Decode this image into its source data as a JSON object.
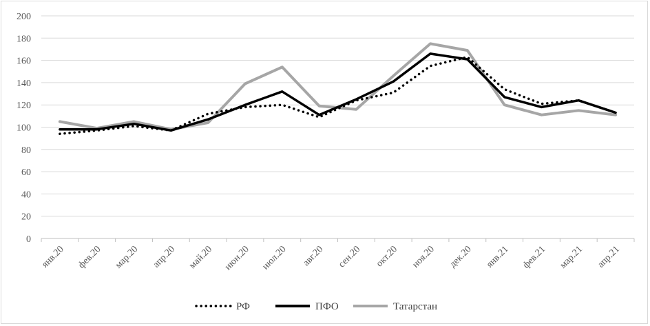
{
  "chart_data": {
    "type": "line",
    "categories": [
      "янв.20",
      "фев.20",
      "мар.20",
      "апр.20",
      "май.20",
      "июн.20",
      "июл.20",
      "авг.20",
      "сен.20",
      "окт.20",
      "ноя.20",
      "дек.20",
      "янв.21",
      "фев.21",
      "мар.21",
      "апр.21"
    ],
    "ylim": [
      0,
      200
    ],
    "yticks": [
      0,
      20,
      40,
      60,
      80,
      100,
      120,
      140,
      160,
      180,
      200
    ],
    "grid": true,
    "legend_position": "bottom",
    "series": [
      {
        "name": "РФ",
        "style": "dotted",
        "color": "#000000",
        "values": [
          94,
          97,
          101,
          97,
          112,
          118,
          120,
          109,
          124,
          131,
          155,
          163,
          134,
          121,
          124,
          113
        ]
      },
      {
        "name": "ПФО",
        "style": "solid",
        "color": "#000000",
        "values": [
          98,
          98,
          103,
          97,
          107,
          120,
          132,
          111,
          125,
          141,
          166,
          161,
          127,
          118,
          124,
          113
        ]
      },
      {
        "name": "Татарстан",
        "style": "solid",
        "color": "#a6a6a6",
        "values": [
          105,
          99,
          105,
          98,
          104,
          139,
          154,
          119,
          116,
          146,
          175,
          169,
          120,
          111,
          115,
          111
        ]
      }
    ]
  }
}
